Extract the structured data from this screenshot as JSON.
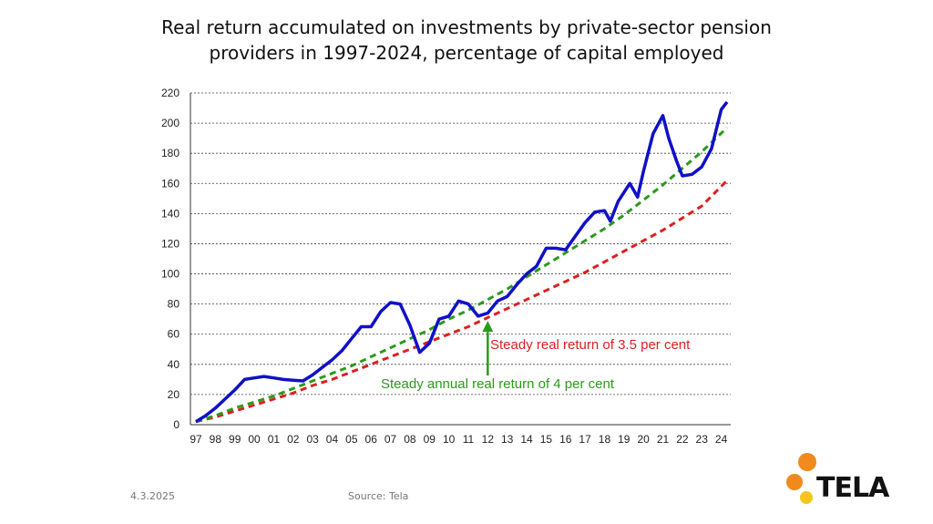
{
  "slide": {
    "title_line1": "Real return accumulated on investments by private-sector pension",
    "title_line2": "providers in 1997-2024, percentage of capital employed",
    "date": "4.3.2025",
    "source": "Source: Tela",
    "logo_text": "TELA"
  },
  "colors": {
    "actual": "#1010c8",
    "green": "#2a9a1a",
    "red": "#dd1f1f",
    "logo_orange": "#f08a1c",
    "logo_yellow": "#f7c51e"
  },
  "chart_data": {
    "type": "line",
    "xlabel": "",
    "ylabel": "",
    "ylim": [
      0,
      220
    ],
    "yticks": [
      0,
      20,
      40,
      60,
      80,
      100,
      120,
      140,
      160,
      180,
      200,
      220
    ],
    "xlim": [
      1997,
      2024.3
    ],
    "grid": true,
    "xtick_labels": [
      "97",
      "98",
      "99",
      "00",
      "01",
      "02",
      "03",
      "04",
      "05",
      "06",
      "07",
      "08",
      "09",
      "10",
      "11",
      "12",
      "13",
      "14",
      "15",
      "16",
      "17",
      "18",
      "19",
      "20",
      "21",
      "22",
      "23",
      "24"
    ],
    "series": [
      {
        "role": "actual",
        "style": "solid",
        "x": [
          1997.0,
          1997.5,
          1998.0,
          1998.5,
          1999.0,
          1999.5,
          2000.0,
          2000.5,
          2001.0,
          2001.5,
          2002.0,
          2002.5,
          2003.0,
          2003.5,
          2004.0,
          2004.5,
          2005.0,
          2005.5,
          2006.0,
          2006.5,
          2007.0,
          2007.5,
          2008.0,
          2008.5,
          2009.0,
          2009.5,
          2010.0,
          2010.5,
          2011.0,
          2011.5,
          2012.0,
          2012.5,
          2013.0,
          2013.5,
          2014.0,
          2014.5,
          2015.0,
          2015.5,
          2016.0,
          2016.5,
          2017.0,
          2017.5,
          2018.0,
          2018.3,
          2018.7,
          2019.0,
          2019.3,
          2019.7,
          2020.0,
          2020.5,
          2021.0,
          2021.3,
          2021.7,
          2022.0,
          2022.5,
          2023.0,
          2023.5,
          2024.0,
          2024.3
        ],
        "y": [
          2,
          6,
          11,
          17,
          23,
          30,
          31,
          32,
          31,
          30,
          29.5,
          29,
          33,
          38,
          43,
          49,
          57,
          65,
          65,
          75,
          81,
          80,
          66,
          48,
          54,
          70,
          72,
          82,
          80,
          72,
          74,
          82,
          85,
          93,
          100,
          105,
          117,
          117,
          116,
          125,
          134,
          141,
          142,
          135,
          148,
          154,
          160,
          151,
          168,
          193,
          205,
          190,
          175,
          165,
          166,
          171,
          183,
          209,
          214
        ]
      },
      {
        "name": "Steady annual real return of 4 per cent",
        "role": "green",
        "style": "dashed",
        "x": [
          1997,
          1998,
          1999,
          2000,
          2001,
          2002,
          2003,
          2004,
          2005,
          2006,
          2007,
          2008,
          2009,
          2010,
          2011,
          2012,
          2013,
          2014,
          2015,
          2016,
          2017,
          2018,
          2019,
          2020,
          2021,
          2022,
          2023,
          2024.3
        ],
        "y": [
          2,
          6,
          11,
          15,
          19,
          24,
          29,
          34,
          39,
          45,
          51,
          57,
          63,
          70,
          76,
          83,
          90,
          98,
          106,
          114,
          122,
          130,
          139,
          149,
          159,
          170,
          181,
          197
        ]
      },
      {
        "name": "Steady real return of 3.5 per cent",
        "role": "red",
        "style": "dashed",
        "x": [
          1997,
          1998,
          1999,
          2000,
          2001,
          2002,
          2003,
          2004,
          2005,
          2006,
          2007,
          2008,
          2009,
          2010,
          2011,
          2012,
          2013,
          2014,
          2015,
          2016,
          2017,
          2018,
          2019,
          2020,
          2021,
          2022,
          2023,
          2024.3
        ],
        "y": [
          2,
          5,
          9,
          13,
          17,
          21,
          26,
          30,
          35,
          40,
          45,
          50,
          55,
          60,
          65,
          71,
          77,
          83,
          89,
          95,
          101,
          108,
          115,
          122,
          129,
          137,
          145,
          162
        ]
      }
    ],
    "annotations": [
      {
        "text": "Steady real return of 3.5 per cent",
        "color": "red"
      },
      {
        "text": "Steady annual real return of 4 per cent",
        "color": "green",
        "arrow_x": 2012,
        "arrow_y": 70
      }
    ]
  }
}
